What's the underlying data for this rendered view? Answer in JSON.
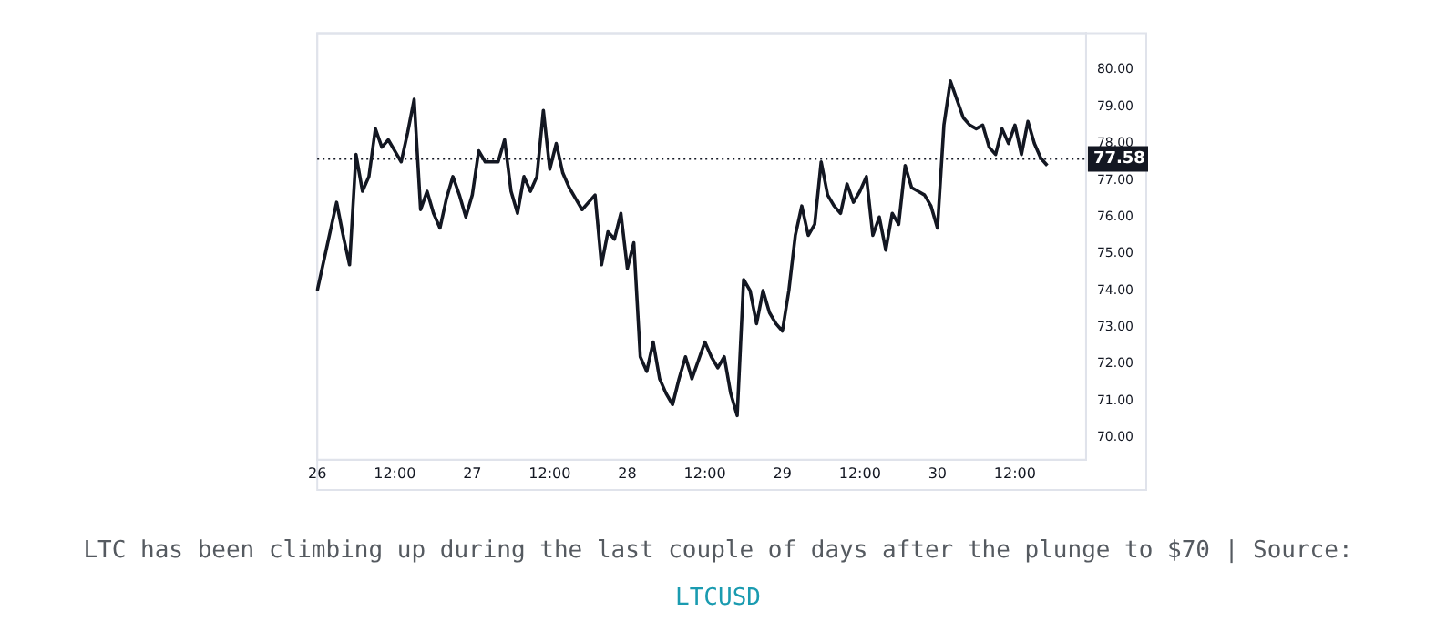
{
  "chart_data": {
    "type": "line",
    "categories": [
      "26",
      null,
      null,
      null,
      null,
      null,
      null,
      null,
      null,
      null,
      null,
      null,
      "12:00",
      null,
      null,
      null,
      null,
      null,
      null,
      null,
      null,
      null,
      null,
      null,
      "27",
      null,
      null,
      null,
      null,
      null,
      null,
      null,
      null,
      null,
      null,
      null,
      "12:00",
      null,
      null,
      null,
      null,
      null,
      null,
      null,
      null,
      null,
      null,
      null,
      "28",
      null,
      null,
      null,
      null,
      null,
      null,
      null,
      null,
      null,
      null,
      null,
      "12:00",
      null,
      null,
      null,
      null,
      null,
      null,
      null,
      null,
      null,
      null,
      null,
      "29",
      null,
      null,
      null,
      null,
      null,
      null,
      null,
      null,
      null,
      null,
      null,
      "12:00",
      null,
      null,
      null,
      null,
      null,
      null,
      null,
      null,
      null,
      null,
      null,
      "30",
      null,
      null,
      null,
      null,
      null,
      null,
      null,
      null,
      null,
      null,
      null,
      "12:00",
      null,
      null,
      null,
      null,
      null,
      null,
      null,
      null,
      null,
      null,
      null
    ],
    "series": [
      {
        "color": "#131722",
        "values": [
          74.0,
          74.8,
          75.6,
          76.4,
          75.5,
          74.7,
          77.7,
          76.7,
          77.1,
          78.4,
          77.9,
          78.1,
          77.8,
          77.5,
          78.3,
          79.2,
          76.2,
          76.7,
          76.1,
          75.7,
          76.5,
          77.1,
          76.6,
          76.0,
          76.6,
          77.8,
          77.5,
          77.5,
          77.5,
          78.1,
          76.7,
          76.1,
          77.1,
          76.7,
          77.1,
          78.9,
          77.3,
          78.0,
          77.2,
          76.8,
          76.5,
          76.2,
          76.4,
          76.6,
          74.7,
          75.6,
          75.4,
          76.1,
          74.6,
          75.3,
          72.2,
          71.8,
          72.6,
          71.6,
          71.2,
          70.9,
          71.6,
          72.2,
          71.6,
          72.1,
          72.6,
          72.2,
          71.9,
          72.2,
          71.2,
          70.6,
          74.3,
          74.0,
          73.1,
          74.0,
          73.4,
          73.1,
          72.9,
          74.0,
          75.5,
          76.3,
          75.5,
          75.8,
          77.5,
          76.6,
          76.3,
          76.1,
          76.9,
          76.4,
          76.7,
          77.1,
          75.5,
          76.0,
          75.1,
          76.1,
          75.8,
          77.4,
          76.8,
          76.7,
          76.6,
          76.3,
          75.7,
          78.5,
          79.7,
          79.2,
          78.7,
          78.5,
          78.4,
          78.5,
          77.9,
          77.7,
          78.4,
          78.0,
          78.5,
          77.7,
          78.6,
          78.0,
          77.6,
          77.4,
          null,
          null,
          null,
          null,
          null,
          null
        ]
      }
    ],
    "ylim": [
      69.4,
      81
    ],
    "yticks": [
      {
        "value": 70,
        "label": "70.00"
      },
      {
        "value": 71,
        "label": "71.00"
      },
      {
        "value": 72,
        "label": "72.00"
      },
      {
        "value": 73,
        "label": "73.00"
      },
      {
        "value": 74,
        "label": "74.00"
      },
      {
        "value": 75,
        "label": "75.00"
      },
      {
        "value": 76,
        "label": "76.00"
      },
      {
        "value": 77,
        "label": "77.00"
      },
      {
        "value": 78,
        "label": "78.00"
      },
      {
        "value": 79,
        "label": "79.00"
      },
      {
        "value": 80,
        "label": "80.00"
      }
    ],
    "ref_lines": [
      {
        "axis": "y",
        "value": 77.58,
        "label": "77.58",
        "color": "#131722",
        "line_style": "dotted"
      }
    ],
    "grid": false,
    "legend": false,
    "marker": "none",
    "line_style": "solid",
    "annotations": [
      "LTC has been climbing up during the last couple of days after the plunge to $70 | Source:",
      "LTCUSD"
    ]
  }
}
